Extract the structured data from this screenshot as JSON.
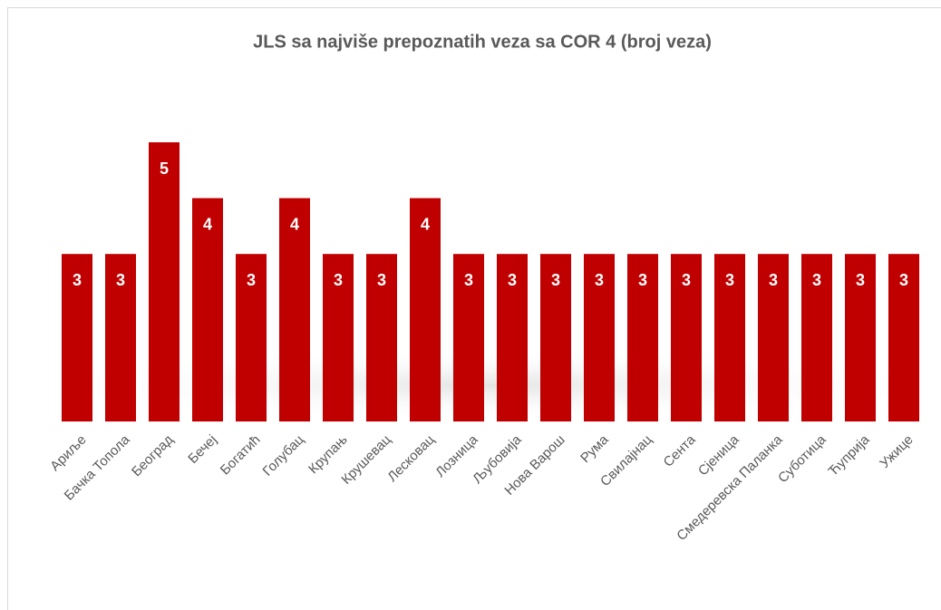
{
  "chart_data": {
    "type": "bar",
    "title": "JLS sa najviše prepoznatih veza sa COR 4 (broj veza)",
    "categories": [
      "Ариље",
      "Бачка Топола",
      "Београд",
      "Бечеј",
      "Богатић",
      "Голубац",
      "Крупањ",
      "Крушевац",
      "Лесковац",
      "Лозница",
      "Љубовија",
      "Нова Варош",
      "Рума",
      "Свилајнац",
      "Сента",
      "Сјеница",
      "Смедеревска Паланка",
      "Суботица",
      "Ћуприја",
      "Ужице"
    ],
    "values": [
      3,
      3,
      5,
      4,
      3,
      4,
      3,
      3,
      4,
      3,
      3,
      3,
      3,
      3,
      3,
      3,
      3,
      3,
      3,
      3
    ],
    "color": "#c00000"
  }
}
